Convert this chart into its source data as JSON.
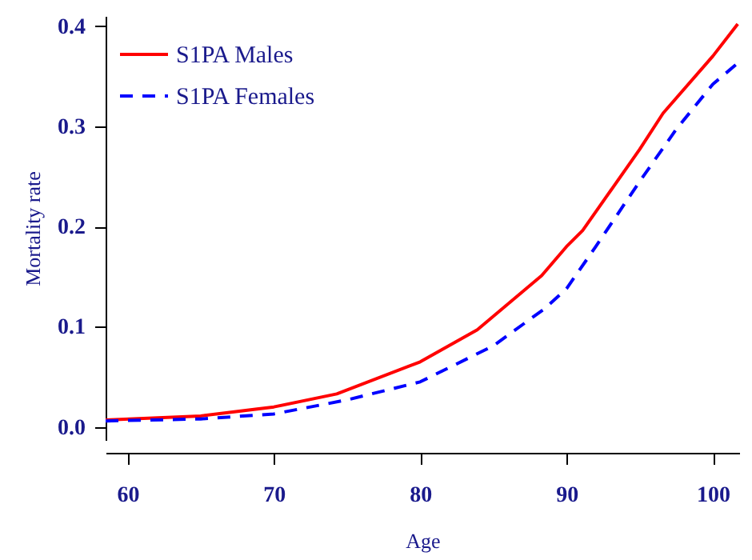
{
  "chart_data": {
    "type": "line",
    "xlabel": "Age",
    "ylabel": "Mortality rate",
    "xlim": [
      58.5,
      101.8
    ],
    "xticks": [
      60,
      70,
      80,
      90,
      100
    ],
    "ylim": [
      -0.013,
      0.41
    ],
    "yticks": [
      {
        "value": 0,
        "label": "0.0"
      },
      0.1,
      0.2,
      0.3,
      0.4
    ],
    "grid": false,
    "legend": "top left",
    "marker": "none",
    "series": [
      {
        "name": "S1PA Males",
        "color": "#ff0000",
        "line_style": "solid",
        "x": [
          58.5,
          65,
          70,
          74.3,
          80,
          83.9,
          88.3,
          90,
          91.1,
          95,
          96.6,
          100,
          101.7
        ],
        "values": [
          0.007,
          0.011,
          0.02,
          0.033,
          0.065,
          0.097,
          0.151,
          0.18,
          0.196,
          0.277,
          0.313,
          0.37,
          0.402
        ]
      },
      {
        "name": "S1PA Females",
        "color": "#0000ff",
        "line_style": "dashed",
        "x": [
          58.5,
          65,
          70,
          75,
          80,
          85,
          88.5,
          90,
          92,
          95,
          97.5,
          100,
          101.7
        ],
        "values": [
          0.006,
          0.008,
          0.013,
          0.027,
          0.045,
          0.081,
          0.118,
          0.138,
          0.18,
          0.245,
          0.297,
          0.342,
          0.363
        ]
      }
    ]
  }
}
